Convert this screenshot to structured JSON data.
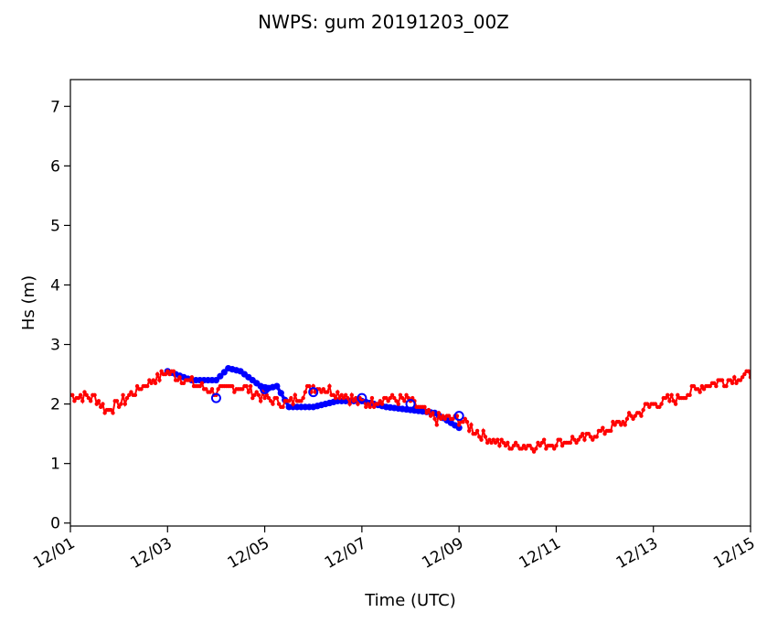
{
  "chart_data": {
    "type": "line",
    "title": "NWPS: gum 20191203_00Z",
    "xlabel": "Time (UTC)",
    "ylabel": "Hs (m)",
    "x_ticks": [
      "12/01",
      "12/03",
      "12/05",
      "12/07",
      "12/09",
      "12/11",
      "12/13",
      "12/15"
    ],
    "y_ticks": [
      "0",
      "1",
      "2",
      "3",
      "4",
      "5",
      "6",
      "7"
    ],
    "xlim": [
      "2019-12-01 00:00",
      "2019-12-15 00:00"
    ],
    "ylim": [
      -0.05,
      7.45
    ],
    "grid": false,
    "colors": {
      "model": "#ff0000",
      "obs": "#0000ff"
    },
    "series": [
      {
        "style": "red line with small dot markers, hourly",
        "x": [
          "2019-12-01 00:00",
          "2019-12-01 12:00",
          "2019-12-01 18:00",
          "2019-12-02 00:00",
          "2019-12-02 12:00",
          "2019-12-03 00:00",
          "2019-12-03 12:00",
          "2019-12-04 00:00",
          "2019-12-04 12:00",
          "2019-12-05 00:00",
          "2019-12-05 12:00",
          "2019-12-06 00:00",
          "2019-12-06 12:00",
          "2019-12-07 00:00",
          "2019-12-07 12:00",
          "2019-12-08 00:00",
          "2019-12-08 12:00",
          "2019-12-09 00:00",
          "2019-12-09 12:00",
          "2019-12-10 00:00",
          "2019-12-10 12:00",
          "2019-12-11 00:00",
          "2019-12-11 12:00",
          "2019-12-12 00:00",
          "2019-12-12 12:00",
          "2019-12-13 00:00",
          "2019-12-13 12:00",
          "2019-12-14 00:00",
          "2019-12-14 12:00",
          "2019-12-15 00:00"
        ],
        "values": [
          2.15,
          2.1,
          1.9,
          2.0,
          2.3,
          2.55,
          2.35,
          2.2,
          2.3,
          2.1,
          2.0,
          2.3,
          2.2,
          2.0,
          2.1,
          2.05,
          1.75,
          1.75,
          1.45,
          1.3,
          1.3,
          1.35,
          1.4,
          1.55,
          1.75,
          2.0,
          2.1,
          2.3,
          2.4,
          2.5
        ]
      },
      {
        "style": "blue thick line with large circle markers",
        "x": [
          "2019-12-03 00:00",
          "2019-12-03 12:00",
          "2019-12-04 00:00",
          "2019-12-04 06:00",
          "2019-12-04 12:00",
          "2019-12-05 00:00",
          "2019-12-05 06:00",
          "2019-12-05 12:00",
          "2019-12-06 00:00",
          "2019-12-06 12:00",
          "2019-12-07 00:00",
          "2019-12-07 12:00",
          "2019-12-08 00:00",
          "2019-12-08 12:00",
          "2019-12-09 00:00"
        ],
        "values": [
          2.55,
          2.4,
          2.4,
          2.6,
          2.55,
          2.25,
          2.3,
          1.95,
          1.95,
          2.05,
          2.05,
          1.95,
          1.9,
          1.85,
          1.6
        ]
      }
    ],
    "open_markers": [
      {
        "x": "2019-12-04 00:00",
        "y": 2.1
      },
      {
        "x": "2019-12-05 00:00",
        "y": 2.25
      },
      {
        "x": "2019-12-06 00:00",
        "y": 2.2
      },
      {
        "x": "2019-12-07 00:00",
        "y": 2.1
      },
      {
        "x": "2019-12-08 00:00",
        "y": 2.0
      },
      {
        "x": "2019-12-09 00:00",
        "y": 1.8
      }
    ]
  }
}
